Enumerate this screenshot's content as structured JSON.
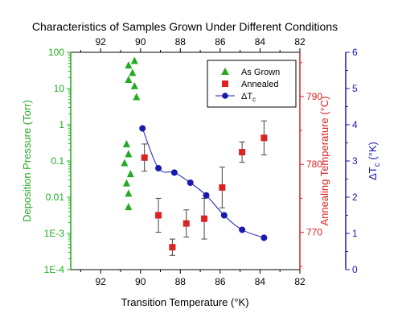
{
  "chart_data": {
    "type": "scatter",
    "title": "Characteristics of Samples Grown Under Different Conditions",
    "xlabel": "Transition Temperature (°K)",
    "xlim": [
      93.5,
      82
    ],
    "xticks": [
      92,
      90,
      88,
      86,
      84,
      82
    ],
    "xtick_labels": [
      "92",
      "90",
      "88",
      "86",
      "84",
      "82"
    ],
    "colors": {
      "green": "#22aa22",
      "red": "#dd2222",
      "blue": "#1a1ab0",
      "black": "#000000"
    },
    "axes": {
      "pressure": {
        "label": "Deposition Pressure (Torr)",
        "scale": "log",
        "lim": [
          0.0001,
          100
        ],
        "ticks": [
          0.0001,
          0.001,
          0.01,
          0.1,
          1,
          10,
          100
        ],
        "tick_labels": [
          "1E-4",
          "1E-3",
          "0.01",
          "0.1",
          "1",
          "10",
          "100"
        ]
      },
      "anneal": {
        "label": "Annealing Temperature (°C)",
        "lim": [
          764.5,
          796.5
        ],
        "ticks": [
          770,
          780,
          790
        ],
        "tick_labels": [
          "770",
          "780",
          "790"
        ]
      },
      "dtc": {
        "label_main": "ΔT",
        "label_sub": "c",
        "label_tail": " (°K)",
        "lim": [
          0,
          6
        ],
        "ticks": [
          0,
          1,
          2,
          3,
          4,
          5,
          6
        ],
        "tick_labels": [
          "0",
          "1",
          "2",
          "3",
          "4",
          "5",
          "6"
        ]
      }
    },
    "legend": {
      "position": "top-right",
      "entries": [
        {
          "label": "As Grown",
          "marker": "triangle",
          "color": "green"
        },
        {
          "label": "Annealed",
          "marker": "square",
          "color": "red"
        },
        {
          "label_main": "ΔT",
          "label_sub": "c",
          "marker": "circle-line",
          "color": "blue"
        }
      ]
    },
    "series": [
      {
        "name": "As Grown",
        "axis": "pressure",
        "marker": "triangle",
        "color": "green",
        "points": [
          {
            "x": 90.3,
            "y": 60
          },
          {
            "x": 90.6,
            "y": 45
          },
          {
            "x": 90.4,
            "y": 28
          },
          {
            "x": 90.6,
            "y": 18
          },
          {
            "x": 90.3,
            "y": 12
          },
          {
            "x": 90.2,
            "y": 6
          },
          {
            "x": 90.7,
            "y": 0.3
          },
          {
            "x": 90.6,
            "y": 0.16
          },
          {
            "x": 90.8,
            "y": 0.09
          },
          {
            "x": 90.5,
            "y": 0.045
          },
          {
            "x": 90.7,
            "y": 0.025
          },
          {
            "x": 90.6,
            "y": 0.013
          },
          {
            "x": 90.6,
            "y": 0.0055
          }
        ]
      },
      {
        "name": "Annealed",
        "axis": "anneal",
        "marker": "square",
        "color": "red",
        "points": [
          {
            "x": 89.8,
            "y": 781.0,
            "err": 2.0
          },
          {
            "x": 89.1,
            "y": 772.5,
            "err": 2.5
          },
          {
            "x": 88.4,
            "y": 767.8,
            "err": 1.2
          },
          {
            "x": 87.7,
            "y": 771.3,
            "err": 2.0
          },
          {
            "x": 86.8,
            "y": 772.0,
            "err": 3.0
          },
          {
            "x": 85.9,
            "y": 776.6,
            "err": 3.0
          },
          {
            "x": 84.9,
            "y": 781.8,
            "err": 1.5
          },
          {
            "x": 83.8,
            "y": 783.9,
            "err": 2.5
          }
        ]
      },
      {
        "name": "ΔTc",
        "axis": "dtc",
        "marker": "circle",
        "color": "blue",
        "line": "smooth",
        "points": [
          {
            "x": 89.9,
            "y": 3.9
          },
          {
            "x": 89.1,
            "y": 2.8
          },
          {
            "x": 88.3,
            "y": 2.68
          },
          {
            "x": 87.5,
            "y": 2.4
          },
          {
            "x": 86.7,
            "y": 2.05
          },
          {
            "x": 85.8,
            "y": 1.5
          },
          {
            "x": 84.9,
            "y": 1.1
          },
          {
            "x": 83.8,
            "y": 0.88
          }
        ]
      }
    ]
  }
}
